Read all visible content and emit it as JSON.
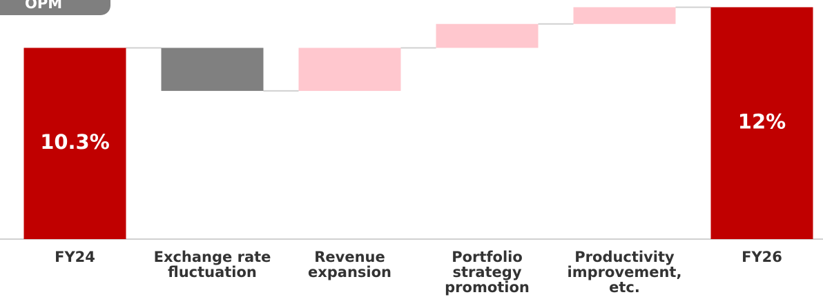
{
  "chart_data": {
    "type": "waterfall",
    "title": "OPM",
    "categories": [
      "FY24",
      "Exchange rate fluctuation",
      "Revenue expansion",
      "Portfolio strategy promotion",
      "Productivity improvement, etc.",
      "FY26"
    ],
    "measure": [
      "absolute",
      "relative",
      "relative",
      "relative",
      "relative",
      "absolute"
    ],
    "values": [
      10.3,
      -1.8,
      1.8,
      1.0,
      0.7,
      12
    ],
    "value_labels": [
      "10.3%",
      null,
      null,
      null,
      null,
      "12%"
    ],
    "colors": [
      "#c00000",
      "#808080",
      "#ffc7ce",
      "#ffc7ce",
      "#ffc7ce",
      "#c00000"
    ],
    "ylim": [
      2.3,
      12.1
    ]
  }
}
